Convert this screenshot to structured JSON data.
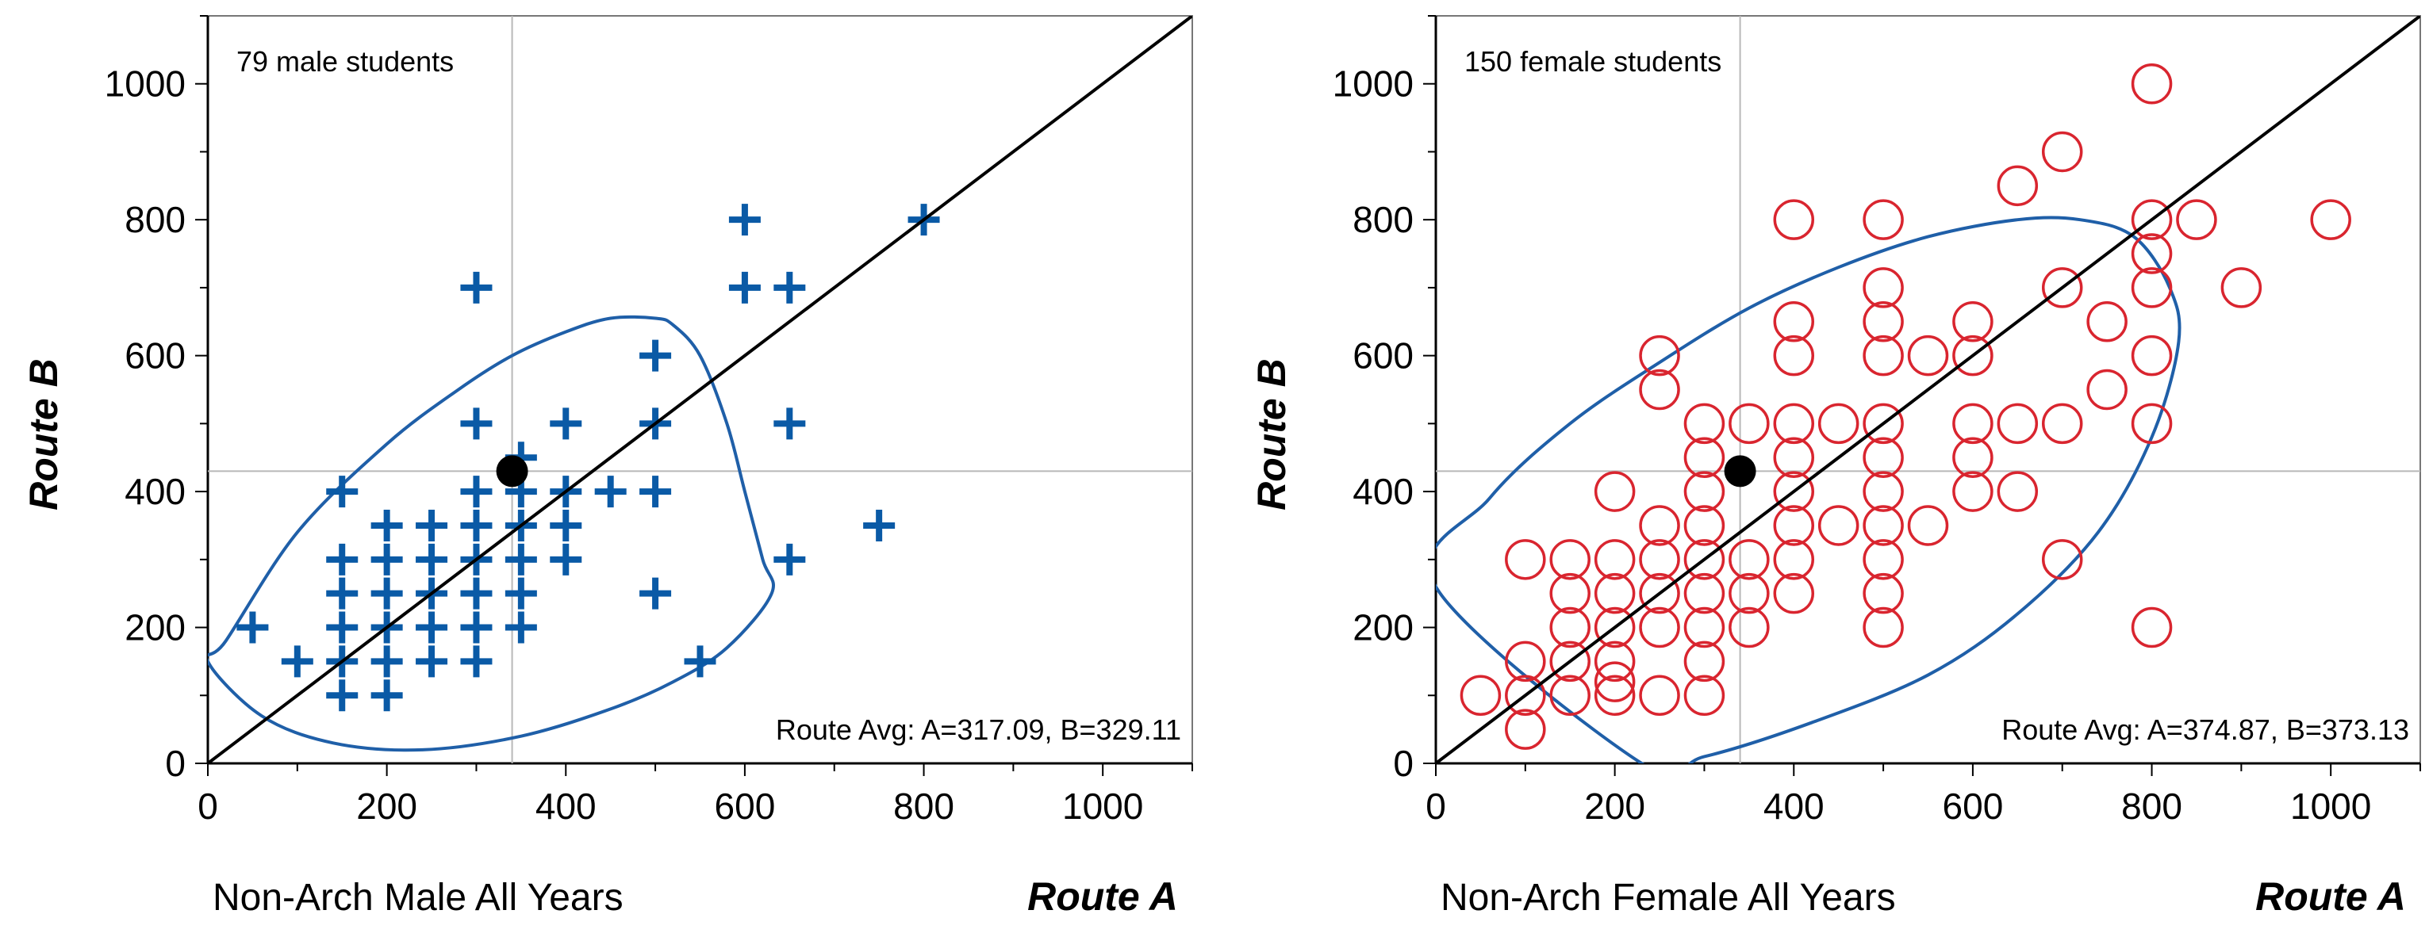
{
  "chart_data": [
    {
      "type": "scatter",
      "annotation_top": "79 male students",
      "annotation_bottom": "Route Avg: A=317.09, B=329.11",
      "xlabel": "Non-Arch Male All Years",
      "x_axis_title": "Route A",
      "ylabel": "Route B",
      "xlim": [
        0,
        1100
      ],
      "ylim": [
        0,
        1100
      ],
      "x_ticks": [
        0,
        200,
        400,
        600,
        800,
        1000
      ],
      "y_ticks": [
        0,
        200,
        400,
        600,
        800,
        1000
      ],
      "marker": "plus",
      "marker_color": "#0a5aa6",
      "ellipse_color": "#1f5fa8",
      "mean_point": [
        340,
        430
      ],
      "reference_lines": {
        "x": 340,
        "y": 430
      },
      "diagonal": [
        [
          0,
          0
        ],
        [
          1100,
          1100
        ]
      ],
      "ellipse_path": [
        [
          20,
          180
        ],
        [
          100,
          340
        ],
        [
          200,
          470
        ],
        [
          280,
          550
        ],
        [
          340,
          600
        ],
        [
          400,
          635
        ],
        [
          450,
          655
        ],
        [
          500,
          655
        ],
        [
          520,
          645
        ],
        [
          550,
          600
        ],
        [
          580,
          500
        ],
        [
          600,
          400
        ],
        [
          620,
          300
        ],
        [
          630,
          250
        ],
        [
          580,
          170
        ],
        [
          520,
          120
        ],
        [
          450,
          80
        ],
        [
          350,
          40
        ],
        [
          240,
          20
        ],
        [
          140,
          30
        ],
        [
          60,
          70
        ],
        [
          0,
          150
        ]
      ],
      "points": [
        [
          50,
          200
        ],
        [
          100,
          150
        ],
        [
          150,
          400
        ],
        [
          150,
          300
        ],
        [
          150,
          250
        ],
        [
          150,
          200
        ],
        [
          150,
          150
        ],
        [
          150,
          100
        ],
        [
          200,
          350
        ],
        [
          200,
          300
        ],
        [
          200,
          250
        ],
        [
          200,
          200
        ],
        [
          200,
          150
        ],
        [
          200,
          100
        ],
        [
          250,
          350
        ],
        [
          250,
          300
        ],
        [
          250,
          250
        ],
        [
          250,
          200
        ],
        [
          250,
          150
        ],
        [
          300,
          700
        ],
        [
          300,
          500
        ],
        [
          300,
          400
        ],
        [
          300,
          350
        ],
        [
          300,
          300
        ],
        [
          300,
          250
        ],
        [
          300,
          200
        ],
        [
          300,
          150
        ],
        [
          350,
          450
        ],
        [
          350,
          400
        ],
        [
          350,
          350
        ],
        [
          350,
          300
        ],
        [
          350,
          250
        ],
        [
          350,
          200
        ],
        [
          400,
          500
        ],
        [
          400,
          400
        ],
        [
          400,
          350
        ],
        [
          400,
          300
        ],
        [
          450,
          400
        ],
        [
          500,
          600
        ],
        [
          500,
          500
        ],
        [
          500,
          400
        ],
        [
          500,
          250
        ],
        [
          550,
          150
        ],
        [
          600,
          800
        ],
        [
          600,
          700
        ],
        [
          650,
          700
        ],
        [
          650,
          500
        ],
        [
          650,
          300
        ],
        [
          750,
          350
        ],
        [
          800,
          800
        ]
      ]
    },
    {
      "type": "scatter",
      "annotation_top": "150 female students",
      "annotation_bottom": "Route Avg: A=374.87, B=373.13",
      "xlabel": "Non-Arch Female All Years",
      "x_axis_title": "Route A",
      "ylabel": "Route B",
      "xlim": [
        0,
        1100
      ],
      "ylim": [
        0,
        1100
      ],
      "x_ticks": [
        0,
        200,
        400,
        600,
        800,
        1000
      ],
      "y_ticks": [
        0,
        200,
        400,
        600,
        800,
        1000
      ],
      "marker": "circle",
      "marker_color": "#d9252f",
      "ellipse_color": "#1f5fa8",
      "mean_point": [
        340,
        430
      ],
      "reference_lines": {
        "x": 340,
        "y": 430
      },
      "diagonal": [
        [
          0,
          0
        ],
        [
          1100,
          1100
        ]
      ],
      "ellipse_path": [
        [
          0,
          260
        ],
        [
          60,
          390
        ],
        [
          150,
          500
        ],
        [
          250,
          590
        ],
        [
          350,
          670
        ],
        [
          450,
          730
        ],
        [
          550,
          775
        ],
        [
          650,
          800
        ],
        [
          720,
          800
        ],
        [
          780,
          775
        ],
        [
          820,
          700
        ],
        [
          830,
          620
        ],
        [
          800,
          480
        ],
        [
          740,
          340
        ],
        [
          650,
          220
        ],
        [
          550,
          130
        ],
        [
          420,
          60
        ],
        [
          300,
          10
        ],
        [
          230,
          0
        ]
      ],
      "points": [
        [
          50,
          100
        ],
        [
          100,
          300
        ],
        [
          100,
          150
        ],
        [
          100,
          100
        ],
        [
          100,
          50
        ],
        [
          150,
          300
        ],
        [
          150,
          250
        ],
        [
          150,
          200
        ],
        [
          150,
          150
        ],
        [
          150,
          100
        ],
        [
          200,
          400
        ],
        [
          200,
          300
        ],
        [
          200,
          250
        ],
        [
          200,
          200
        ],
        [
          200,
          150
        ],
        [
          200,
          120
        ],
        [
          200,
          100
        ],
        [
          250,
          600
        ],
        [
          250,
          550
        ],
        [
          250,
          350
        ],
        [
          250,
          300
        ],
        [
          250,
          250
        ],
        [
          250,
          200
        ],
        [
          250,
          100
        ],
        [
          300,
          500
        ],
        [
          300,
          450
        ],
        [
          300,
          400
        ],
        [
          300,
          350
        ],
        [
          300,
          300
        ],
        [
          300,
          250
        ],
        [
          300,
          200
        ],
        [
          300,
          150
        ],
        [
          300,
          100
        ],
        [
          350,
          500
        ],
        [
          350,
          300
        ],
        [
          350,
          250
        ],
        [
          350,
          200
        ],
        [
          400,
          800
        ],
        [
          400,
          650
        ],
        [
          400,
          600
        ],
        [
          400,
          500
        ],
        [
          400,
          450
        ],
        [
          400,
          400
        ],
        [
          400,
          350
        ],
        [
          400,
          300
        ],
        [
          400,
          250
        ],
        [
          450,
          500
        ],
        [
          450,
          350
        ],
        [
          500,
          800
        ],
        [
          500,
          700
        ],
        [
          500,
          650
        ],
        [
          500,
          600
        ],
        [
          500,
          500
        ],
        [
          500,
          450
        ],
        [
          500,
          400
        ],
        [
          500,
          350
        ],
        [
          500,
          300
        ],
        [
          500,
          250
        ],
        [
          500,
          200
        ],
        [
          550,
          600
        ],
        [
          550,
          350
        ],
        [
          600,
          650
        ],
        [
          600,
          600
        ],
        [
          600,
          500
        ],
        [
          600,
          450
        ],
        [
          600,
          400
        ],
        [
          650,
          850
        ],
        [
          650,
          500
        ],
        [
          650,
          400
        ],
        [
          700,
          900
        ],
        [
          700,
          700
        ],
        [
          700,
          500
        ],
        [
          700,
          300
        ],
        [
          750,
          650
        ],
        [
          750,
          550
        ],
        [
          800,
          1000
        ],
        [
          800,
          800
        ],
        [
          800,
          750
        ],
        [
          800,
          700
        ],
        [
          800,
          600
        ],
        [
          800,
          500
        ],
        [
          800,
          200
        ],
        [
          850,
          800
        ],
        [
          900,
          700
        ],
        [
          1000,
          800
        ]
      ]
    }
  ]
}
